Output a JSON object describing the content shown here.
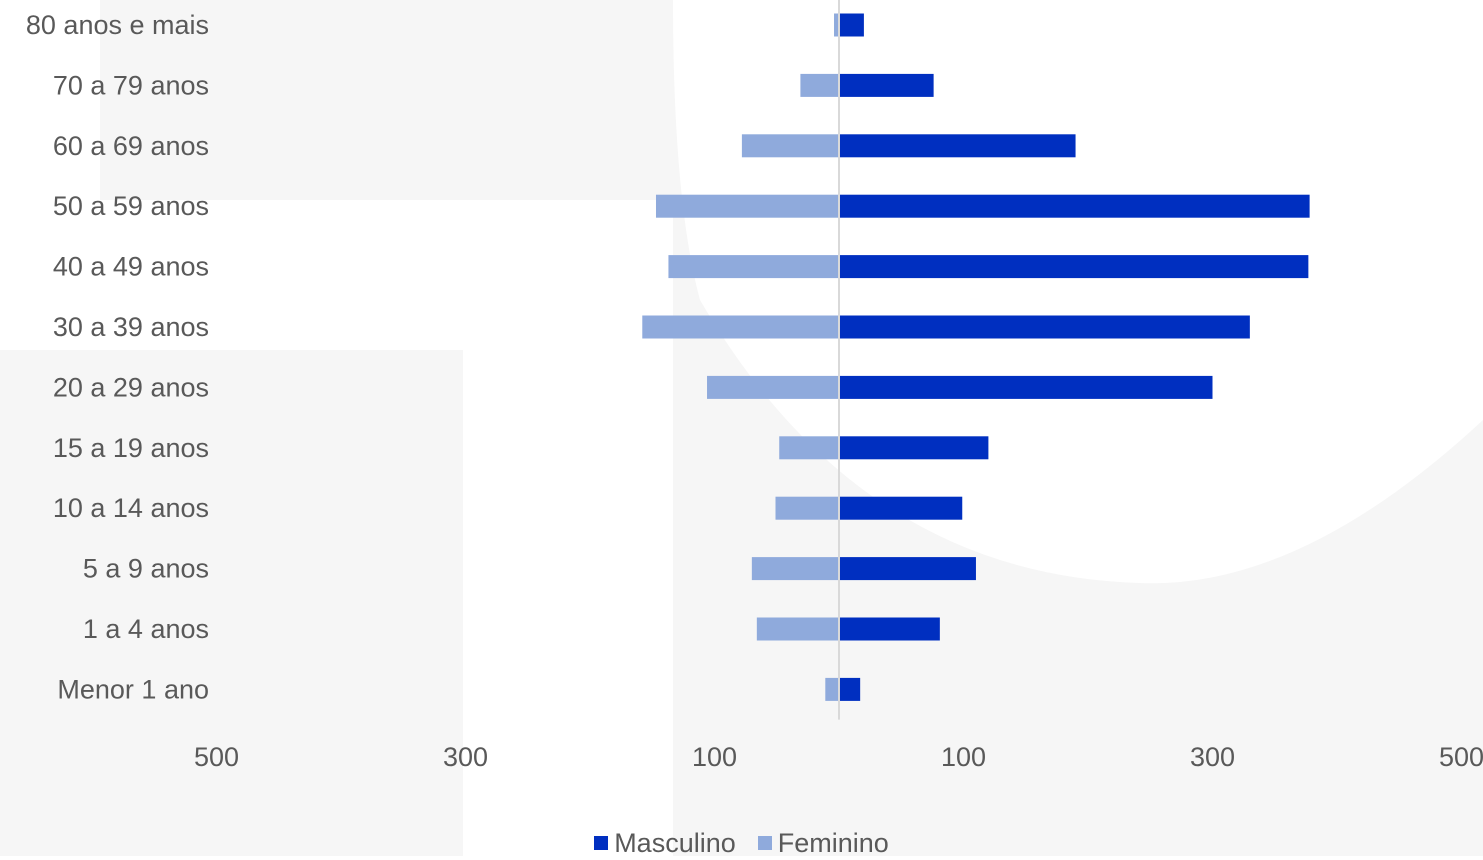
{
  "chart_data": {
    "type": "bar",
    "orientation": "horizontal",
    "layout": "population-pyramid",
    "categories": [
      "80 anos e mais",
      "70 a 79 anos",
      "60 a 69 anos",
      "50 a 59 anos",
      "40 a 49 anos",
      "30 a 39 anos",
      "20 a 29 anos",
      "15 a 19 anos",
      "10 a 14 anos",
      "5 a 9 anos",
      "1 a 4 anos",
      "Menor 1 ano"
    ],
    "series": [
      {
        "name": "Masculino",
        "color": "#002FC0",
        "side": "right",
        "values": [
          20,
          76,
          190,
          378,
          377,
          330,
          300,
          120,
          99,
          110,
          81,
          17
        ]
      },
      {
        "name": "Feminino",
        "color": "#8FAADC",
        "side": "left",
        "values": [
          4,
          31,
          78,
          147,
          137,
          158,
          106,
          48,
          51,
          70,
          66,
          11
        ]
      }
    ],
    "xticks": [
      "500",
      "300",
      "100",
      "100",
      "300",
      "500"
    ],
    "xlim": [
      -500,
      500
    ],
    "grid": false,
    "legend_position": "bottom"
  }
}
